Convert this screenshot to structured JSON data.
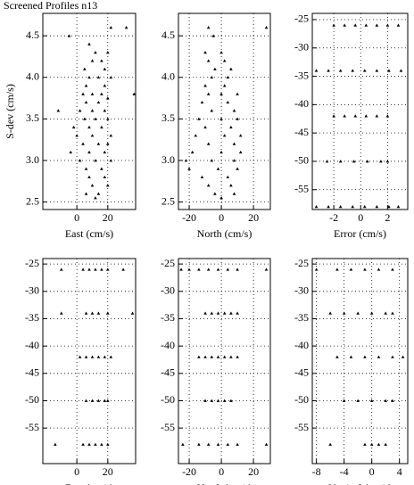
{
  "chart_data": [
    {
      "type": "scatter",
      "title": "Screened Profiles n13",
      "x_label": "East (cm/s)",
      "y_label": "S-dev (cm/s)",
      "color": "#000000",
      "grid": true,
      "marker": "triangle",
      "xlim": [
        -22,
        38
      ],
      "xticks": [
        0,
        20
      ],
      "ylim": [
        2.41,
        4.77
      ],
      "yticks": [
        {
          "value": 2.5,
          "label": "2.5"
        },
        {
          "value": 3,
          "label": "3.0"
        },
        3.5,
        {
          "value": 4,
          "label": "4.0"
        },
        4.5
      ],
      "x": [
        22,
        32,
        -5,
        8,
        12,
        20,
        10,
        16,
        5,
        18,
        8,
        14,
        22,
        6,
        18,
        37,
        4,
        10,
        16,
        20,
        -12,
        6,
        14,
        2,
        10,
        18,
        5,
        12,
        20,
        -2,
        8,
        16,
        0,
        10,
        22,
        4,
        14,
        20,
        -4,
        8,
        18,
        2,
        12,
        22,
        6,
        16,
        8,
        18,
        10,
        20,
        6,
        14,
        12
      ],
      "y": [
        4.6,
        4.6,
        4.5,
        4.4,
        4.3,
        4.3,
        4.2,
        4.2,
        4.1,
        4.1,
        4.0,
        4.0,
        4.0,
        3.9,
        3.9,
        3.8,
        3.8,
        3.8,
        3.8,
        3.75,
        3.6,
        3.7,
        3.7,
        3.6,
        3.6,
        3.6,
        3.5,
        3.5,
        3.5,
        3.4,
        3.4,
        3.4,
        3.3,
        3.3,
        3.3,
        3.2,
        3.2,
        3.2,
        3.1,
        3.1,
        3.1,
        3.0,
        3.0,
        3.0,
        2.9,
        2.9,
        2.8,
        2.8,
        2.7,
        2.7,
        2.6,
        2.6,
        2.55
      ]
    },
    {
      "type": "scatter",
      "x_label": "North (cm/s)",
      "color": "#000000",
      "grid": true,
      "marker": "triangle",
      "xlim": [
        -26.7,
        30.5
      ],
      "xticks": [
        -20,
        0,
        20
      ],
      "ylim": [
        2.41,
        4.77
      ],
      "yticks": [
        {
          "value": 2.5,
          "label": "2.5"
        },
        {
          "value": 3,
          "label": "3.0"
        },
        3.5,
        {
          "value": 4,
          "label": "4.0"
        },
        4.5
      ],
      "x": [
        -8,
        28,
        -5,
        -10,
        0,
        -8,
        2,
        -4,
        6,
        -6,
        4,
        -10,
        2,
        -8,
        0,
        10,
        -12,
        4,
        -6,
        8,
        -14,
        0,
        10,
        -10,
        6,
        -16,
        2,
        12,
        -8,
        8,
        -18,
        0,
        12,
        -22,
        -6,
        8,
        -20,
        -2,
        10,
        -12,
        4,
        -8,
        6,
        -4,
        8,
        0
      ],
      "y": [
        4.6,
        4.6,
        4.5,
        4.3,
        4.3,
        4.2,
        4.2,
        4.1,
        4.1,
        4.0,
        4.0,
        3.9,
        3.9,
        3.8,
        3.8,
        3.8,
        3.7,
        3.7,
        3.6,
        3.6,
        3.5,
        3.5,
        3.5,
        3.4,
        3.4,
        3.3,
        3.3,
        3.3,
        3.2,
        3.2,
        3.1,
        3.1,
        3.1,
        3.0,
        3.0,
        3.0,
        2.9,
        2.9,
        2.9,
        2.8,
        2.8,
        2.7,
        2.7,
        2.6,
        2.6,
        2.55
      ]
    },
    {
      "type": "scatter",
      "x_label": "Error (cm/s)",
      "color": "#000000",
      "grid": true,
      "marker": "triangle",
      "xlim": [
        -3.6,
        3.5
      ],
      "xticks": [
        -2,
        0,
        2
      ],
      "ylim": [
        -58.5,
        -23.9
      ],
      "yticks": [
        -55,
        -50,
        -45,
        -40,
        -35,
        -30,
        -25
      ],
      "x": [
        -2,
        -1.2,
        -0.4,
        0.4,
        1.2,
        2,
        2.8,
        -3.3,
        -2.4,
        -1.5,
        -0.6,
        0.3,
        1.2,
        2.1,
        3,
        -2,
        -1.2,
        -0.4,
        0.4,
        1.2,
        2,
        -2.5,
        -1.5,
        -0.5,
        0.5,
        1.5,
        2,
        -3.3,
        -2.4,
        -1.5,
        -0.6,
        0.3,
        1.2,
        2.1,
        2.8
      ],
      "y": [
        -26,
        -26,
        -26,
        -26,
        -26,
        -26,
        -26,
        -34,
        -34,
        -34,
        -34,
        -34,
        -34,
        -34,
        -34,
        -42,
        -42,
        -42,
        -42,
        -42,
        -42,
        -50,
        -50,
        -50,
        -50,
        -50,
        -50,
        -58,
        -58,
        -58,
        -58,
        -58,
        -58,
        -58,
        -58
      ]
    },
    {
      "type": "scatter",
      "x_label": "East (cm/s)",
      "color": "#000000",
      "grid": true,
      "marker": "triangle",
      "xlim": [
        -22,
        38
      ],
      "xticks": [
        0,
        20
      ],
      "ylim": [
        -61.5,
        -24
      ],
      "yticks": [
        -55,
        -50,
        -45,
        -40,
        -35,
        -30,
        -25
      ],
      "x": [
        -10,
        4,
        8,
        12,
        16,
        20,
        30,
        -10,
        6,
        10,
        14,
        20,
        36,
        2,
        6,
        10,
        14,
        18,
        22,
        6,
        10,
        14,
        18,
        20,
        -14,
        4,
        8,
        12,
        16,
        20
      ],
      "y": [
        -26,
        -26,
        -26,
        -26,
        -26,
        -26,
        -26,
        -34,
        -34,
        -34,
        -34,
        -34,
        -34,
        -42,
        -42,
        -42,
        -42,
        -42,
        -42,
        -50,
        -50,
        -50,
        -50,
        -50,
        -58,
        -58,
        -58,
        -58,
        -58,
        -58
      ]
    },
    {
      "type": "scatter",
      "x_label": "North (cm/s)",
      "color": "#000000",
      "grid": true,
      "marker": "triangle",
      "xlim": [
        -26.7,
        30.5
      ],
      "xticks": [
        -20,
        0,
        20
      ],
      "ylim": [
        -61.5,
        -24
      ],
      "yticks": [
        -55,
        -50,
        -45,
        -40,
        -35,
        -30,
        -25
      ],
      "x": [
        -25,
        -20,
        -14,
        -8,
        -2,
        4,
        10,
        28,
        -10,
        -6,
        -2,
        2,
        6,
        10,
        -14,
        -10,
        -6,
        -2,
        2,
        6,
        10,
        -10,
        -6,
        -2,
        2,
        6,
        -24,
        -14,
        -8,
        -2,
        4,
        10,
        28
      ],
      "y": [
        -26,
        -26,
        -26,
        -26,
        -26,
        -26,
        -26,
        -26,
        -34,
        -34,
        -34,
        -34,
        -34,
        -34,
        -42,
        -42,
        -42,
        -42,
        -42,
        -42,
        -42,
        -50,
        -50,
        -50,
        -50,
        -50,
        -58,
        -58,
        -58,
        -58,
        -58,
        -58,
        -58
      ]
    },
    {
      "type": "scatter",
      "x_label": "Vertical (cm/s)",
      "color": "#000000",
      "grid": true,
      "marker": "triangle",
      "xlim": [
        -8.6,
        5.2
      ],
      "xticks": [
        -8,
        -4,
        0,
        4
      ],
      "ylim": [
        -61.5,
        -24
      ],
      "yticks": [
        -55,
        -50,
        -45,
        -40,
        -35,
        -30,
        -25
      ],
      "x": [
        -8,
        -5,
        -3,
        -1,
        1,
        3,
        -6,
        -4,
        -2,
        0,
        2,
        3,
        -5,
        -3,
        -1,
        1,
        3,
        4.5,
        -4,
        -2,
        0,
        2,
        3,
        -6,
        -1,
        0,
        1,
        2
      ],
      "y": [
        -26,
        -26,
        -26,
        -26,
        -26,
        -26,
        -34,
        -34,
        -34,
        -34,
        -34,
        -34,
        -42,
        -42,
        -42,
        -42,
        -42,
        -42,
        -50,
        -50,
        -50,
        -50,
        -50,
        -58,
        -58,
        -58,
        -58,
        -58
      ]
    }
  ]
}
